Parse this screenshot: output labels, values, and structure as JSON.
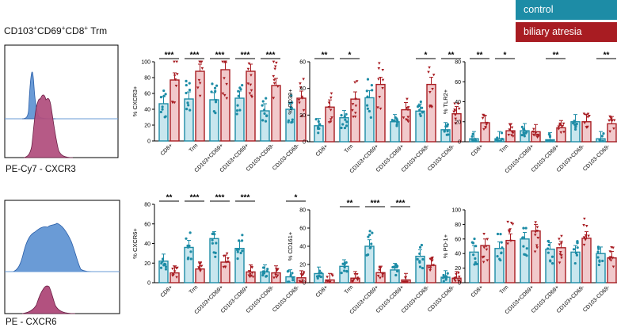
{
  "legend": [
    {
      "label": "control",
      "color": "#1d8ca6"
    },
    {
      "label": "biliary atresia",
      "color": "#a81c22"
    }
  ],
  "title": {
    "pre": "CD103",
    "sup1": "+",
    "mid1": "CD69",
    "sup2": "+",
    "mid2": "CD8",
    "sup3": "+",
    "post": " Trm"
  },
  "histograms": [
    {
      "label": "PE-Cy7  - CXCR3",
      "colors": {
        "control": "#6a9bd6",
        "ba": "#b2517f"
      }
    },
    {
      "label": "PE  - CXCR6",
      "colors": {
        "control": "#6a9bd6",
        "ba": "#b2517f"
      }
    }
  ],
  "chart_data": [
    {
      "type": "bar",
      "ylabel": "% CXCR3+",
      "ylim": [
        0,
        100
      ],
      "yticks": [
        0,
        20,
        40,
        60,
        80,
        100
      ],
      "categories": [
        "CD8+",
        "Trm",
        "CD103+CD69+",
        "CD103+CD69+",
        "CD103+CD69-",
        "CD103-CD69-"
      ],
      "series": [
        {
          "name": "control",
          "values": [
            47,
            53,
            52,
            54,
            38,
            40
          ]
        },
        {
          "name": "biliary atresia",
          "values": [
            77,
            88,
            90,
            88,
            70,
            54
          ]
        }
      ],
      "significance": [
        "***",
        "***",
        "***",
        "***",
        "***",
        ""
      ]
    },
    {
      "type": "bar",
      "ylabel": "% CD39+",
      "ylim": [
        0,
        60
      ],
      "yticks": [
        0,
        20,
        40,
        60
      ],
      "categories": [
        "CD8+",
        "Trm",
        "CD103+CD69+",
        "CD103-CD69+",
        "CD103+CD69-",
        "CD103-CD69-"
      ],
      "series": [
        {
          "name": "control",
          "values": [
            12,
            18,
            33,
            15,
            23,
            9
          ]
        },
        {
          "name": "biliary atresia",
          "values": [
            26,
            32,
            43,
            24,
            43,
            21
          ]
        }
      ],
      "significance": [
        "**",
        "*",
        "",
        "",
        "*",
        "**"
      ]
    },
    {
      "type": "bar",
      "ylabel": "% TLR2+",
      "ylim": [
        0,
        80
      ],
      "yticks": [
        0,
        20,
        40,
        60,
        80
      ],
      "categories": [
        "CD8+",
        "Trm",
        "CD103+CD69+",
        "CD103-CD69+",
        "CD103+CD69-",
        "CD103-CD69-"
      ],
      "series": [
        {
          "name": "control",
          "values": [
            3,
            3,
            11,
            2,
            20,
            3
          ]
        },
        {
          "name": "biliary atresia",
          "values": [
            19,
            11,
            10,
            14,
            20,
            18
          ]
        }
      ],
      "significance": [
        "**",
        "*",
        "",
        "**",
        "",
        "**"
      ]
    },
    {
      "type": "bar",
      "ylabel": "% CXCR6+",
      "ylim": [
        0,
        80
      ],
      "yticks": [
        0,
        20,
        40,
        60,
        80
      ],
      "categories": [
        "CD8+",
        "Trm",
        "CD103+CD69+",
        "CD103-CD69+",
        "CD103+CD69-",
        "CD103-CD69-"
      ],
      "series": [
        {
          "name": "control",
          "values": [
            22,
            36,
            45,
            35,
            11,
            6
          ]
        },
        {
          "name": "biliary atresia",
          "values": [
            10,
            14,
            21,
            11,
            10,
            5
          ]
        }
      ],
      "significance": [
        "**",
        "***",
        "***",
        "***",
        "",
        "*"
      ]
    },
    {
      "type": "bar",
      "ylabel": "% CD161+",
      "ylim": [
        0,
        80
      ],
      "yticks": [
        0,
        20,
        40,
        60,
        80
      ],
      "categories": [
        "CD8+",
        "Trm",
        "CD103+CD69+",
        "CD103-CD69+",
        "CD103+CD69-",
        "CD103-CD69-"
      ],
      "series": [
        {
          "name": "control",
          "values": [
            10,
            18,
            40,
            14,
            29,
            6
          ]
        },
        {
          "name": "biliary atresia",
          "values": [
            3,
            5,
            11,
            3,
            19,
            5
          ]
        }
      ],
      "significance": [
        "",
        "**",
        "***",
        "***",
        "",
        ""
      ]
    },
    {
      "type": "bar",
      "ylabel": "% PD-1+",
      "ylim": [
        0,
        100
      ],
      "yticks": [
        0,
        20,
        40,
        60,
        80,
        100
      ],
      "categories": [
        "CD8+",
        "Trm",
        "CD103+CD69+",
        "CD103-CD69+",
        "CD103+CD69-",
        "CD103-CD69-"
      ],
      "series": [
        {
          "name": "control",
          "values": [
            42,
            47,
            60,
            46,
            42,
            40
          ]
        },
        {
          "name": "biliary atresia",
          "values": [
            51,
            58,
            71,
            48,
            61,
            34
          ]
        }
      ],
      "significance": [
        "",
        "",
        "",
        "",
        "",
        ""
      ]
    }
  ]
}
